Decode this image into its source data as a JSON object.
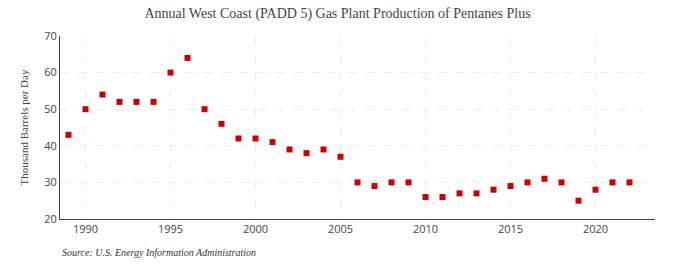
{
  "chart_data": {
    "type": "scatter",
    "title": "Annual West Coast (PADD 5) Gas Plant Production of Pentanes Plus",
    "ylabel": "Thousand Barrels per Day",
    "source": "Source: U.S. Energy Information Administration",
    "x": [
      1989,
      1990,
      1991,
      1992,
      1993,
      1994,
      1995,
      1996,
      1997,
      1998,
      1999,
      2000,
      2001,
      2002,
      2003,
      2004,
      2005,
      2006,
      2007,
      2008,
      2009,
      2010,
      2011,
      2012,
      2013,
      2014,
      2015,
      2016,
      2017,
      2018,
      2019,
      2020,
      2021,
      2022
    ],
    "values": [
      43,
      50,
      54,
      52,
      52,
      52,
      60,
      64,
      50,
      46,
      42,
      42,
      41,
      39,
      38,
      39,
      37,
      30,
      29,
      30,
      30,
      26,
      26,
      27,
      27,
      28,
      29,
      30,
      31,
      30,
      25,
      28,
      30,
      30
    ],
    "color": "#cc0000",
    "marker": "square",
    "xlim": [
      1988.5,
      2023.5
    ],
    "ylim": [
      20,
      70
    ],
    "xticks": [
      1990,
      1995,
      2000,
      2005,
      2010,
      2015,
      2020
    ],
    "yticks": [
      20,
      30,
      40,
      50,
      60,
      70
    ],
    "grid": true
  }
}
